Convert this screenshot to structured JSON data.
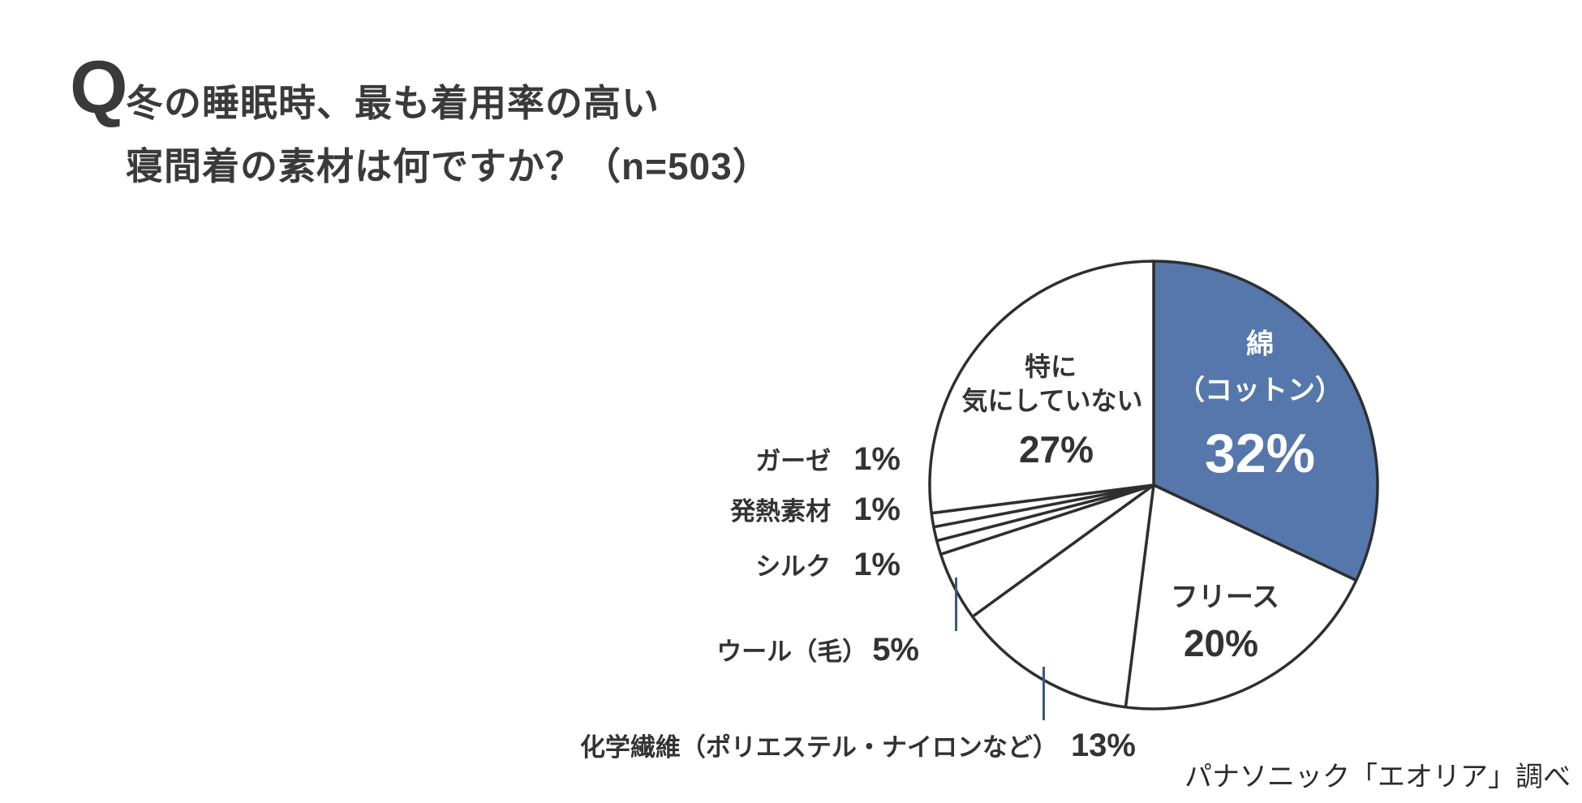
{
  "question": {
    "prefix": "Q",
    "line1": "冬の睡眠時、最も着用率の高い",
    "line2": "寝間着の素材は何ですか？（n=503）"
  },
  "source": "パナソニック「エオリア」調べ",
  "colors": {
    "highlight_blue": "#5577ab",
    "pie_stroke": "#2f2f2f",
    "text": "#333333",
    "leader": "#3a5a7d",
    "background": "#ffffff"
  },
  "chart_data": {
    "type": "pie",
    "title": "冬の睡眠時、最も着用率の高い寝間着の素材は何ですか？（n=503）",
    "n": 503,
    "start_angle_deg": 0,
    "direction": "clockwise",
    "legend_position": "none",
    "source": "パナソニック「エオリア」調べ",
    "slices": [
      {
        "key": "cotton",
        "label": "綿（コットン）",
        "value": 32,
        "color": "#5577ab",
        "label_color": "#ffffff"
      },
      {
        "key": "fleece",
        "label": "フリース",
        "value": 20,
        "color": "#ffffff",
        "label_color": "#333333"
      },
      {
        "key": "chemical",
        "label": "化学繊維（ポリエステル・ナイロンなど）",
        "value": 13,
        "color": "#ffffff",
        "label_color": "#333333"
      },
      {
        "key": "wool",
        "label": "ウール（毛）",
        "value": 5,
        "color": "#ffffff",
        "label_color": "#333333"
      },
      {
        "key": "silk",
        "label": "シルク",
        "value": 1,
        "color": "#ffffff",
        "label_color": "#333333"
      },
      {
        "key": "heat",
        "label": "発熱素材",
        "value": 1,
        "color": "#ffffff",
        "label_color": "#333333"
      },
      {
        "key": "gauze",
        "label": "ガーゼ",
        "value": 1,
        "color": "#ffffff",
        "label_color": "#333333"
      },
      {
        "key": "none",
        "label": "特に気にしていない",
        "value": 27,
        "color": "#ffffff",
        "label_color": "#333333"
      }
    ]
  },
  "labels": {
    "cotton": {
      "line1": "綿",
      "line2": "（コットン）",
      "pct": "32%"
    },
    "fleece": {
      "name": "フリース",
      "pct": "20%"
    },
    "none": {
      "line1": "特に",
      "line2": "気にしていない",
      "pct": "27%"
    },
    "gauze": {
      "name": "ガーゼ",
      "pct": "1%"
    },
    "heat": {
      "name": "発熱素材",
      "pct": "1%"
    },
    "silk": {
      "name": "シルク",
      "pct": "1%"
    },
    "wool": {
      "name": "ウール（毛）",
      "pct": "5%"
    },
    "chemical": {
      "name": "化学繊維（ポリエステル・ナイロンなど）",
      "pct": "13%"
    }
  }
}
